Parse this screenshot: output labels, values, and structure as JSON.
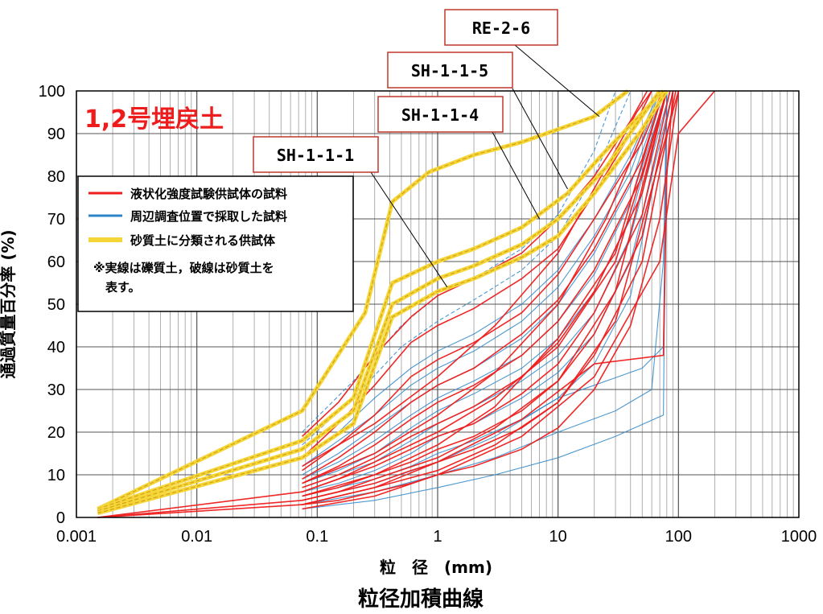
{
  "chart_data": {
    "type": "line",
    "title": "粒径加積曲線",
    "panel_title": "1,2号埋戻土",
    "xlabel": "粒　径　(mm)",
    "ylabel": "通過質量百分率 (%)",
    "x_scale": "log",
    "xlim": [
      0.001,
      1000
    ],
    "ylim": [
      0,
      100
    ],
    "x_ticks": [
      "0.001",
      "0.01",
      "0.1",
      "1",
      "10",
      "100",
      "1000"
    ],
    "y_ticks": [
      "0",
      "10",
      "20",
      "30",
      "40",
      "50",
      "60",
      "70",
      "80",
      "90",
      "100"
    ],
    "grid": true,
    "legend_position": "top-left",
    "legend": [
      {
        "label": "液状化強度試験供試体の試料",
        "color": "#ee1c1c"
      },
      {
        "label": "周辺調査位置で採取した試料",
        "color": "#2e86c8"
      },
      {
        "label": "砂質土に分類される供試体",
        "color": "#f5d638"
      }
    ],
    "legend_note": [
      "※実線は礫質土，破線は砂質土を",
      "表す。"
    ],
    "callouts": [
      {
        "label": "RE-2-6",
        "point": [
          22,
          94
        ]
      },
      {
        "label": "SH-1-1-5",
        "point": [
          12,
          77
        ]
      },
      {
        "label": "SH-1-1-4",
        "point": [
          7,
          70
        ]
      },
      {
        "label": "SH-1-1-1",
        "point": [
          1.2,
          54
        ]
      }
    ],
    "series": [
      {
        "group": "yellow",
        "style": "dashed",
        "x": [
          0.0015,
          0.075,
          0.25,
          0.42,
          0.85,
          2,
          5,
          20,
          38
        ],
        "y": [
          2,
          25,
          48,
          74,
          81,
          85,
          88,
          94,
          100
        ]
      },
      {
        "group": "yellow",
        "style": "dashed",
        "x": [
          0.0015,
          0.075,
          0.2,
          0.42,
          1,
          2,
          5,
          12,
          25,
          75
        ],
        "y": [
          2,
          18,
          28,
          55,
          60,
          63,
          68,
          76,
          86,
          100
        ]
      },
      {
        "group": "yellow",
        "style": "dashed",
        "x": [
          0.0015,
          0.075,
          0.2,
          0.42,
          1,
          2,
          5,
          10,
          25,
          70
        ],
        "y": [
          1.5,
          16,
          25,
          50,
          56,
          59,
          64,
          70,
          82,
          100
        ]
      },
      {
        "group": "yellow",
        "style": "dashed",
        "x": [
          0.0015,
          0.075,
          0.2,
          0.42,
          1,
          2,
          5,
          10,
          20,
          50,
          80
        ],
        "y": [
          1,
          14,
          22,
          47,
          53,
          56,
          61,
          66,
          76,
          91,
          100
        ]
      },
      {
        "group": "red",
        "style": "solid",
        "x": [
          0.075,
          0.15,
          0.3,
          0.6,
          1,
          2,
          5,
          10,
          20,
          40,
          55
        ],
        "y": [
          19,
          27,
          38,
          47,
          52,
          56,
          62,
          70,
          80,
          93,
          100
        ]
      },
      {
        "group": "red",
        "style": "solid",
        "x": [
          0.075,
          0.15,
          0.3,
          0.6,
          1,
          2,
          5,
          10,
          20,
          40,
          60
        ],
        "y": [
          14,
          22,
          31,
          41,
          45,
          49,
          56,
          63,
          76,
          90,
          100
        ]
      },
      {
        "group": "red",
        "style": "solid",
        "x": [
          0.075,
          0.15,
          0.3,
          0.6,
          1,
          2,
          5,
          10,
          20,
          50,
          75
        ],
        "y": [
          11,
          17,
          24,
          33,
          37,
          41,
          48,
          57,
          70,
          88,
          100
        ]
      },
      {
        "group": "red",
        "style": "solid",
        "x": [
          0.075,
          0.15,
          0.3,
          0.6,
          1,
          2,
          5,
          10,
          20,
          50,
          75
        ],
        "y": [
          9,
          14,
          20,
          27,
          31,
          35,
          43,
          51,
          63,
          84,
          100
        ]
      },
      {
        "group": "red",
        "style": "solid",
        "x": [
          0.075,
          0.15,
          0.3,
          0.6,
          1,
          2,
          5,
          10,
          20,
          50,
          80
        ],
        "y": [
          8,
          12,
          17,
          23,
          27,
          31,
          38,
          46,
          58,
          80,
          100
        ]
      },
      {
        "group": "red",
        "style": "solid",
        "x": [
          0.075,
          0.15,
          0.3,
          0.6,
          1,
          2,
          5,
          10,
          20,
          50,
          80
        ],
        "y": [
          7,
          10,
          14,
          19,
          22,
          26,
          33,
          41,
          53,
          76,
          100
        ]
      },
      {
        "group": "red",
        "style": "solid",
        "x": [
          0.075,
          0.15,
          0.3,
          0.6,
          1,
          2,
          5,
          10,
          20,
          50,
          85
        ],
        "y": [
          6,
          9,
          12,
          16,
          19,
          22,
          29,
          36,
          48,
          71,
          100
        ]
      },
      {
        "group": "red",
        "style": "solid",
        "x": [
          0.075,
          0.15,
          0.3,
          0.6,
          1,
          2,
          5,
          10,
          20,
          50,
          90
        ],
        "y": [
          5,
          7,
          10,
          13,
          16,
          19,
          25,
          32,
          43,
          66,
          100
        ]
      },
      {
        "group": "red",
        "style": "solid",
        "x": [
          0.075,
          0.15,
          0.3,
          0.6,
          1,
          2,
          5,
          10,
          20,
          50,
          95
        ],
        "y": [
          4,
          6,
          8,
          11,
          13,
          16,
          21,
          27,
          38,
          60,
          100
        ]
      },
      {
        "group": "red",
        "style": "solid",
        "x": [
          0.075,
          0.15,
          0.3,
          0.6,
          1,
          2,
          5,
          10,
          20,
          40,
          70,
          100
        ],
        "y": [
          3,
          4,
          6,
          8,
          10,
          12,
          16,
          21,
          30,
          45,
          70,
          100
        ]
      },
      {
        "group": "red",
        "style": "solid",
        "x": [
          0.0015,
          0.075,
          0.15,
          0.3,
          1,
          3,
          10,
          30,
          80
        ],
        "y": [
          0,
          6,
          9,
          13,
          20,
          28,
          40,
          60,
          100
        ]
      },
      {
        "group": "red",
        "style": "solid",
        "x": [
          0.0015,
          0.075,
          0.15,
          0.3,
          1,
          3,
          10,
          30,
          80
        ],
        "y": [
          0,
          4,
          6,
          9,
          14,
          21,
          32,
          53,
          100
        ]
      },
      {
        "group": "red",
        "style": "solid",
        "x": [
          0.0015,
          0.075,
          0.15,
          0.3,
          1,
          3,
          10,
          30,
          100
        ],
        "y": [
          0,
          3,
          5,
          7,
          11,
          17,
          27,
          46,
          100
        ]
      },
      {
        "group": "red",
        "style": "solid",
        "x": [
          0.075,
          0.3,
          1,
          3,
          10,
          25,
          45,
          60
        ],
        "y": [
          12,
          22,
          33,
          45,
          62,
          82,
          95,
          100
        ]
      },
      {
        "group": "red",
        "style": "solid",
        "x": [
          0.075,
          0.3,
          1,
          3,
          10,
          25,
          50,
          75
        ],
        "y": [
          8,
          15,
          24,
          34,
          50,
          70,
          90,
          100
        ]
      },
      {
        "group": "red",
        "style": "solid",
        "x": [
          0.075,
          0.3,
          1,
          3,
          10,
          30,
          75
        ],
        "y": [
          5,
          10,
          17,
          26,
          42,
          62,
          100
        ]
      },
      {
        "group": "red",
        "style": "solid",
        "x": [
          0.075,
          0.3,
          1,
          5,
          20,
          75,
          80,
          90
        ],
        "y": [
          3,
          7,
          13,
          23,
          36,
          38,
          80,
          100
        ]
      },
      {
        "group": "red",
        "style": "solid",
        "x": [
          0.075,
          0.3,
          1,
          5,
          20,
          70,
          100,
          200
        ],
        "y": [
          2,
          5,
          10,
          19,
          33,
          60,
          90,
          100
        ]
      },
      {
        "group": "blue",
        "style": "solid",
        "x": [
          0.075,
          0.15,
          0.3,
          0.6,
          1,
          2,
          5,
          10,
          20,
          40,
          70
        ],
        "y": [
          14,
          20,
          28,
          35,
          39,
          43,
          50,
          58,
          70,
          85,
          100
        ]
      },
      {
        "group": "blue",
        "style": "solid",
        "x": [
          0.075,
          0.15,
          0.3,
          0.6,
          1,
          2,
          5,
          10,
          20,
          40,
          70
        ],
        "y": [
          12,
          18,
          24,
          31,
          35,
          39,
          46,
          54,
          66,
          81,
          100
        ]
      },
      {
        "group": "blue",
        "style": "solid",
        "x": [
          0.075,
          0.15,
          0.3,
          0.6,
          1,
          2,
          5,
          10,
          20,
          40,
          75
        ],
        "y": [
          10,
          15,
          21,
          27,
          31,
          35,
          42,
          50,
          62,
          78,
          100
        ]
      },
      {
        "group": "blue",
        "style": "solid",
        "x": [
          0.075,
          0.15,
          0.3,
          0.6,
          1,
          2,
          5,
          10,
          20,
          40,
          80
        ],
        "y": [
          9,
          13,
          18,
          24,
          28,
          32,
          38,
          46,
          57,
          74,
          100
        ]
      },
      {
        "group": "blue",
        "style": "solid",
        "x": [
          0.075,
          0.15,
          0.3,
          0.6,
          1,
          2,
          5,
          10,
          20,
          40,
          80
        ],
        "y": [
          8,
          11,
          15,
          21,
          25,
          29,
          35,
          42,
          53,
          70,
          100
        ]
      },
      {
        "group": "blue",
        "style": "solid",
        "x": [
          0.075,
          0.15,
          0.3,
          0.6,
          1,
          2,
          5,
          10,
          20,
          40,
          85
        ],
        "y": [
          7,
          10,
          13,
          18,
          22,
          26,
          32,
          38,
          48,
          66,
          100
        ]
      },
      {
        "group": "blue",
        "style": "solid",
        "x": [
          0.075,
          0.15,
          0.3,
          0.6,
          1,
          2,
          5,
          10,
          20,
          40,
          90
        ],
        "y": [
          6,
          8,
          11,
          15,
          19,
          22,
          28,
          34,
          43,
          60,
          100
        ]
      },
      {
        "group": "blue",
        "style": "solid",
        "x": [
          0.075,
          0.15,
          0.3,
          0.6,
          1,
          2,
          5,
          10,
          20,
          40,
          90
        ],
        "y": [
          5,
          7,
          9,
          12,
          15,
          18,
          23,
          28,
          36,
          52,
          100
        ]
      },
      {
        "group": "blue",
        "style": "solid",
        "x": [
          0.075,
          0.3,
          1,
          3,
          10,
          30,
          60,
          75,
          80
        ],
        "y": [
          3,
          6,
          10,
          14,
          20,
          25,
          30,
          60,
          100
        ]
      },
      {
        "group": "blue",
        "style": "solid",
        "x": [
          0.075,
          0.3,
          1,
          3,
          10,
          20,
          50,
          75,
          80
        ],
        "y": [
          4,
          8,
          13,
          19,
          28,
          31,
          35,
          40,
          100
        ]
      },
      {
        "group": "blue",
        "style": "solid",
        "x": [
          0.075,
          0.3,
          1,
          3,
          10,
          30,
          75,
          80
        ],
        "y": [
          2,
          4,
          7,
          10,
          14,
          19,
          24,
          100
        ]
      },
      {
        "group": "blue",
        "style": "dashed",
        "x": [
          0.075,
          0.2,
          0.5,
          1,
          2,
          5,
          10,
          20,
          30
        ],
        "y": [
          20,
          32,
          45,
          52,
          56,
          63,
          71,
          86,
          100
        ]
      },
      {
        "group": "blue",
        "style": "dashed",
        "x": [
          0.075,
          0.2,
          0.5,
          1,
          2,
          5,
          10,
          20,
          40
        ],
        "y": [
          17,
          28,
          40,
          46,
          51,
          58,
          66,
          80,
          100
        ]
      }
    ]
  }
}
